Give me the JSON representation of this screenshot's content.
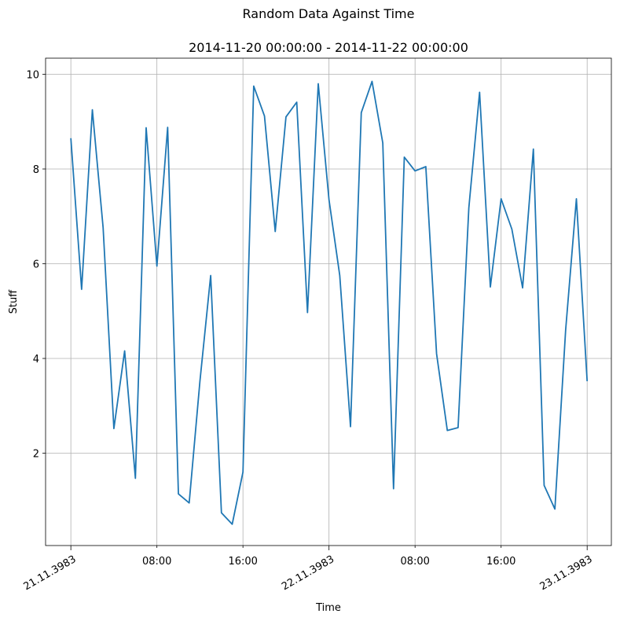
{
  "chart_data": {
    "type": "line",
    "title": "Random Data Against Time",
    "subtitle": "2014-11-20 00:00:00 - 2014-11-22 00:00:00",
    "xlabel": "Time",
    "ylabel": "Stuff",
    "x_unit": "hours",
    "xlim": [
      -2.35,
      50.25
    ],
    "ylim": [
      0.05,
      10.34
    ],
    "grid": true,
    "line_color": "#1f77b4",
    "x_ticks": [
      {
        "value": 0,
        "label": "21.11.3983",
        "major": true
      },
      {
        "value": 8,
        "label": "08:00",
        "major": false
      },
      {
        "value": 16,
        "label": "16:00",
        "major": false
      },
      {
        "value": 24,
        "label": "22.11.3983",
        "major": true
      },
      {
        "value": 32,
        "label": "08:00",
        "major": false
      },
      {
        "value": 40,
        "label": "16:00",
        "major": false
      },
      {
        "value": 48,
        "label": "23.11.3983",
        "major": true
      }
    ],
    "y_ticks": [
      {
        "value": 2,
        "label": "2"
      },
      {
        "value": 4,
        "label": "4"
      },
      {
        "value": 6,
        "label": "6"
      },
      {
        "value": 8,
        "label": "8"
      },
      {
        "value": 10,
        "label": "10"
      }
    ],
    "series": [
      {
        "x": [
          0,
          1,
          2,
          3,
          4,
          5,
          6,
          7,
          8,
          9,
          10,
          11,
          12,
          13,
          14,
          15,
          16,
          17,
          18,
          19,
          20,
          21,
          22,
          23,
          24,
          25,
          26,
          27,
          28,
          29,
          30,
          31,
          32,
          33,
          34,
          35,
          36,
          37,
          38,
          39,
          40,
          41,
          42,
          43,
          44,
          45,
          46,
          47,
          48
        ],
        "values": [
          8.65,
          5.46,
          9.25,
          6.76,
          2.52,
          4.16,
          1.47,
          8.87,
          5.95,
          8.88,
          1.14,
          0.95,
          3.52,
          5.75,
          0.74,
          0.5,
          1.6,
          9.75,
          9.12,
          6.68,
          9.1,
          9.41,
          4.97,
          9.8,
          7.35,
          5.75,
          2.56,
          9.19,
          9.85,
          8.55,
          1.25,
          8.25,
          7.96,
          8.05,
          4.1,
          2.48,
          2.54,
          7.18,
          9.62,
          5.51,
          7.37,
          6.73,
          5.49,
          8.42,
          1.32,
          0.82,
          4.6,
          7.37,
          3.52
        ]
      }
    ]
  }
}
